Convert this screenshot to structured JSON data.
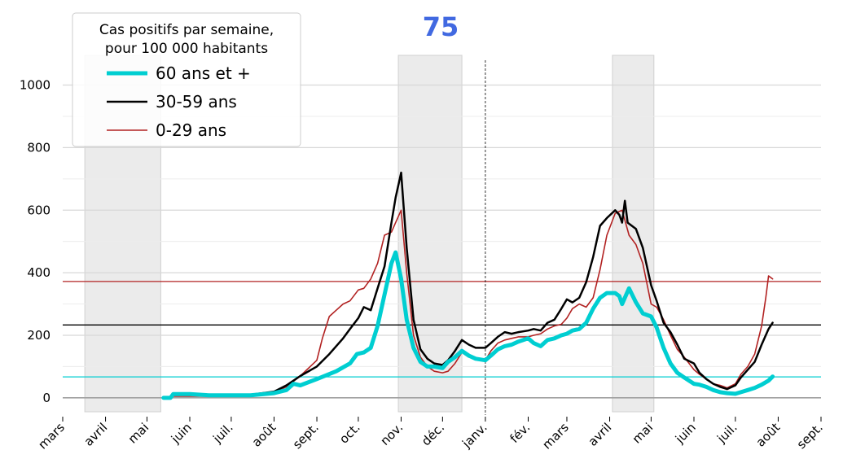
{
  "chart_data": {
    "type": "line",
    "title": "75",
    "title_color": "#4169e1",
    "legend": {
      "title_lines": [
        "Cas positifs par semaine,",
        "pour 100 000 habitants"
      ],
      "placement": "top-left",
      "entries": [
        "60 ans et +",
        "30-59 ans",
        "0-29 ans"
      ]
    },
    "x_tick_labels": [
      "mars",
      "avril",
      "mai",
      "juin",
      "juil.",
      "août",
      "sept.",
      "oct.",
      "nov.",
      "déc.",
      "janv.",
      "fév.",
      "mars",
      "avril",
      "mai",
      "juin",
      "juil.",
      "août",
      "sept."
    ],
    "x_tick_dates": [
      "2020-03-01",
      "2020-04-01",
      "2020-05-01",
      "2020-06-01",
      "2020-07-01",
      "2020-08-01",
      "2020-09-01",
      "2020-10-01",
      "2020-11-01",
      "2020-12-01",
      "2021-01-01",
      "2021-02-01",
      "2021-03-01",
      "2021-04-01",
      "2021-05-01",
      "2021-06-01",
      "2021-07-01",
      "2021-08-01",
      "2021-09-01"
    ],
    "y_ticks": [
      0,
      200,
      400,
      600,
      800,
      1000
    ],
    "ylim": [
      -55,
      1095
    ],
    "grid": "horizontal",
    "shaded_periods": [
      [
        "2020-03-17",
        "2020-05-11"
      ],
      [
        "2020-10-30",
        "2020-12-15"
      ],
      [
        "2021-04-03",
        "2021-05-03"
      ]
    ],
    "vline_date": "2021-01-01",
    "series": [
      {
        "name": "60 ans et +",
        "color": "#00ced1",
        "x": [
          "2020-05-13",
          "2020-05-18",
          "2020-05-20",
          "2020-06-01",
          "2020-06-15",
          "2020-07-01",
          "2020-07-15",
          "2020-08-01",
          "2020-08-10",
          "2020-08-15",
          "2020-08-20",
          "2020-09-01",
          "2020-09-15",
          "2020-09-25",
          "2020-09-30",
          "2020-10-05",
          "2020-10-10",
          "2020-10-15",
          "2020-10-20",
          "2020-10-25",
          "2020-10-28",
          "2020-11-01",
          "2020-11-05",
          "2020-11-10",
          "2020-11-15",
          "2020-11-20",
          "2020-11-25",
          "2020-12-01",
          "2020-12-05",
          "2020-12-10",
          "2020-12-15",
          "2020-12-20",
          "2020-12-25",
          "2021-01-01",
          "2021-01-05",
          "2021-01-10",
          "2021-01-15",
          "2021-01-20",
          "2021-01-25",
          "2021-02-01",
          "2021-02-05",
          "2021-02-10",
          "2021-02-15",
          "2021-02-20",
          "2021-02-25",
          "2021-03-01",
          "2021-03-05",
          "2021-03-10",
          "2021-03-15",
          "2021-03-20",
          "2021-03-25",
          "2021-03-30",
          "2021-04-05",
          "2021-04-08",
          "2021-04-10",
          "2021-04-15",
          "2021-04-20",
          "2021-04-25",
          "2021-05-01",
          "2021-05-05",
          "2021-05-10",
          "2021-05-15",
          "2021-05-20",
          "2021-05-25",
          "2021-06-01",
          "2021-06-05",
          "2021-06-10",
          "2021-06-15",
          "2021-06-20",
          "2021-06-25",
          "2021-07-01",
          "2021-07-05",
          "2021-07-10",
          "2021-07-15",
          "2021-07-20",
          "2021-07-25",
          "2021-07-28"
        ],
        "y": [
          0,
          0,
          12,
          12,
          8,
          8,
          8,
          15,
          25,
          45,
          40,
          60,
          85,
          110,
          140,
          145,
          160,
          230,
          330,
          430,
          465,
          380,
          250,
          160,
          115,
          100,
          100,
          95,
          115,
          130,
          150,
          135,
          125,
          120,
          135,
          155,
          165,
          170,
          180,
          190,
          175,
          165,
          185,
          190,
          200,
          205,
          215,
          220,
          240,
          285,
          320,
          335,
          335,
          325,
          300,
          350,
          305,
          270,
          260,
          225,
          160,
          110,
          80,
          65,
          45,
          42,
          35,
          25,
          18,
          15,
          13,
          18,
          25,
          32,
          42,
          55,
          68
        ]
      },
      {
        "name": "30-59 ans",
        "color": "#000000",
        "x": [
          "2020-05-13",
          "2020-05-18",
          "2020-05-20",
          "2020-06-01",
          "2020-06-15",
          "2020-07-01",
          "2020-07-15",
          "2020-08-01",
          "2020-08-10",
          "2020-08-20",
          "2020-09-01",
          "2020-09-10",
          "2020-09-20",
          "2020-09-25",
          "2020-10-01",
          "2020-10-05",
          "2020-10-10",
          "2020-10-15",
          "2020-10-20",
          "2020-10-25",
          "2020-10-28",
          "2020-11-01",
          "2020-11-05",
          "2020-11-10",
          "2020-11-15",
          "2020-11-20",
          "2020-11-25",
          "2020-12-01",
          "2020-12-05",
          "2020-12-10",
          "2020-12-15",
          "2020-12-20",
          "2020-12-25",
          "2021-01-01",
          "2021-01-05",
          "2021-01-10",
          "2021-01-15",
          "2021-01-20",
          "2021-01-25",
          "2021-02-01",
          "2021-02-05",
          "2021-02-10",
          "2021-02-15",
          "2021-02-20",
          "2021-02-25",
          "2021-03-01",
          "2021-03-05",
          "2021-03-10",
          "2021-03-15",
          "2021-03-20",
          "2021-03-25",
          "2021-03-30",
          "2021-04-05",
          "2021-04-08",
          "2021-04-10",
          "2021-04-12",
          "2021-04-14",
          "2021-04-20",
          "2021-04-25",
          "2021-05-01",
          "2021-05-05",
          "2021-05-10",
          "2021-05-15",
          "2021-05-20",
          "2021-05-25",
          "2021-06-01",
          "2021-06-05",
          "2021-06-10",
          "2021-06-15",
          "2021-06-20",
          "2021-06-25",
          "2021-07-01",
          "2021-07-05",
          "2021-07-10",
          "2021-07-15",
          "2021-07-20",
          "2021-07-25",
          "2021-07-28"
        ],
        "y": [
          0,
          0,
          10,
          10,
          8,
          8,
          10,
          20,
          40,
          70,
          100,
          140,
          190,
          220,
          255,
          290,
          280,
          350,
          420,
          560,
          640,
          720,
          480,
          250,
          155,
          125,
          110,
          105,
          120,
          150,
          185,
          170,
          160,
          160,
          175,
          195,
          210,
          205,
          210,
          215,
          220,
          215,
          240,
          250,
          285,
          315,
          305,
          320,
          370,
          450,
          550,
          575,
          600,
          585,
          560,
          630,
          560,
          540,
          480,
          360,
          310,
          240,
          210,
          170,
          125,
          110,
          80,
          60,
          45,
          35,
          28,
          40,
          65,
          90,
          115,
          170,
          220,
          240
        ]
      },
      {
        "name": "0-29 ans",
        "color": "#b22222",
        "x": [
          "2020-05-13",
          "2020-05-18",
          "2020-05-20",
          "2020-06-01",
          "2020-06-15",
          "2020-07-01",
          "2020-07-15",
          "2020-08-01",
          "2020-08-10",
          "2020-08-20",
          "2020-09-01",
          "2020-09-05",
          "2020-09-10",
          "2020-09-15",
          "2020-09-20",
          "2020-09-25",
          "2020-10-01",
          "2020-10-05",
          "2020-10-10",
          "2020-10-15",
          "2020-10-20",
          "2020-10-25",
          "2020-10-28",
          "2020-11-01",
          "2020-11-05",
          "2020-11-10",
          "2020-11-15",
          "2020-11-20",
          "2020-11-25",
          "2020-12-01",
          "2020-12-05",
          "2020-12-10",
          "2020-12-15",
          "2020-12-20",
          "2020-12-25",
          "2021-01-01",
          "2021-01-05",
          "2021-01-10",
          "2021-01-15",
          "2021-01-20",
          "2021-01-25",
          "2021-02-01",
          "2021-02-05",
          "2021-02-10",
          "2021-02-15",
          "2021-02-20",
          "2021-02-25",
          "2021-03-01",
          "2021-03-05",
          "2021-03-10",
          "2021-03-15",
          "2021-03-20",
          "2021-03-25",
          "2021-03-30",
          "2021-04-05",
          "2021-04-10",
          "2021-04-15",
          "2021-04-20",
          "2021-04-25",
          "2021-05-01",
          "2021-05-05",
          "2021-05-10",
          "2021-05-15",
          "2021-05-20",
          "2021-05-25",
          "2021-06-01",
          "2021-06-05",
          "2021-06-10",
          "2021-06-15",
          "2021-06-20",
          "2021-06-25",
          "2021-07-01",
          "2021-07-05",
          "2021-07-10",
          "2021-07-15",
          "2021-07-20",
          "2021-07-23",
          "2021-07-25",
          "2021-07-28"
        ],
        "y": [
          0,
          0,
          5,
          5,
          5,
          6,
          8,
          18,
          35,
          70,
          120,
          190,
          260,
          280,
          300,
          310,
          345,
          350,
          380,
          430,
          520,
          530,
          560,
          600,
          400,
          200,
          130,
          100,
          85,
          80,
          85,
          110,
          145,
          130,
          125,
          120,
          150,
          175,
          185,
          190,
          195,
          195,
          200,
          205,
          220,
          230,
          235,
          255,
          285,
          300,
          290,
          320,
          410,
          520,
          590,
          600,
          520,
          490,
          430,
          300,
          290,
          250,
          200,
          155,
          130,
          90,
          75,
          60,
          45,
          40,
          32,
          45,
          75,
          100,
          140,
          230,
          320,
          390,
          380
        ]
      }
    ],
    "hlines": [
      {
        "value": 372,
        "color": "#b22222"
      },
      {
        "value": 233,
        "color": "#000000"
      },
      {
        "value": 67,
        "color": "#00ced1"
      }
    ]
  }
}
